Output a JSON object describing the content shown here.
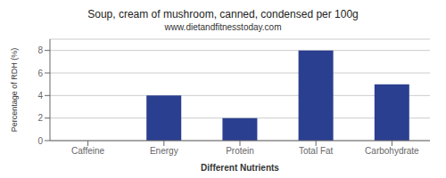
{
  "chart_data": {
    "type": "bar",
    "title": "Soup, cream of mushroom, canned, condensed per 100g",
    "subtitle": "www.dietandfitnesstoday.com",
    "xlabel": "Different Nutrients",
    "ylabel": "Percentage of RDH (%)",
    "categories": [
      "Caffeine",
      "Energy",
      "Protein",
      "Total Fat",
      "Carbohydrate"
    ],
    "values": [
      0,
      4,
      2,
      8,
      5
    ],
    "color": "#2a3f8f",
    "ylim": [
      0,
      9
    ],
    "yticks": [
      0,
      2,
      4,
      6,
      8
    ],
    "grid": true
  }
}
